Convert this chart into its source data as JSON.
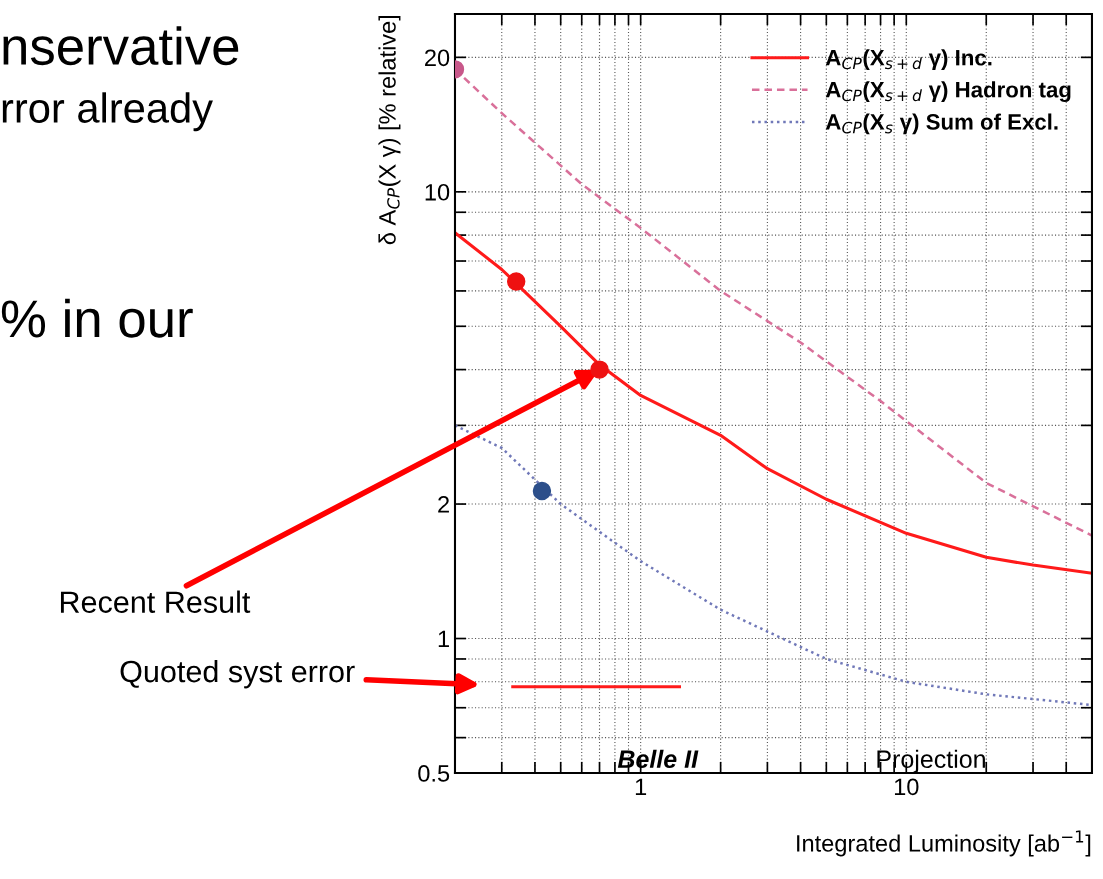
{
  "chart_data": {
    "type": "line",
    "xlabel": "Integrated Luminosity [ab$^{−1}$]",
    "ylabel": "δ A$_{CP}$(X γ) [% relative]",
    "log": "xy",
    "grid": true,
    "legend": "top right",
    "xlim": [
      0.2,
      50
    ],
    "xticks": [
      {
        "value": 0.2,
        "label": null
      },
      {
        "value": 0.3,
        "label": null
      },
      {
        "value": 0.4,
        "label": null
      },
      {
        "value": 0.5,
        "label": null
      },
      {
        "value": 0.6,
        "label": null
      },
      {
        "value": 0.7,
        "label": null
      },
      {
        "value": 0.8,
        "label": null
      },
      {
        "value": 0.9,
        "label": null
      },
      1,
      {
        "value": 2,
        "label": null
      },
      {
        "value": 3,
        "label": null
      },
      {
        "value": 4,
        "label": null
      },
      {
        "value": 5,
        "label": null
      },
      {
        "value": 6,
        "label": null
      },
      {
        "value": 7,
        "label": null
      },
      {
        "value": 8,
        "label": null
      },
      {
        "value": 9,
        "label": null
      },
      10,
      {
        "value": 20,
        "label": null
      },
      {
        "value": 30,
        "label": null
      },
      {
        "value": 40,
        "label": null
      }
    ],
    "ylim": [
      0.5,
      25
    ],
    "yticks": [
      0.5,
      {
        "value": 0.6,
        "label": null
      },
      {
        "value": 0.7,
        "label": null
      },
      {
        "value": 0.8,
        "label": null
      },
      {
        "value": 0.9,
        "label": null
      },
      1,
      2,
      {
        "value": 3,
        "label": null
      },
      {
        "value": 4,
        "label": null
      },
      {
        "value": 5,
        "label": null
      },
      {
        "value": 6,
        "label": null
      },
      {
        "value": 7,
        "label": null
      },
      {
        "value": 8,
        "label": null
      },
      {
        "value": 9,
        "label": null
      },
      10,
      20
    ],
    "series": [
      {
        "name": "A$_{CP}$(X$_{s+d}$ γ) Inc.",
        "line_style": "solid",
        "color": "#ff1a1a",
        "x": [
          0.2,
          0.3,
          0.5,
          0.7,
          1,
          2,
          3,
          5,
          10,
          20,
          30,
          50
        ],
        "values": [
          8.1,
          6.7,
          5.0,
          4.1,
          3.5,
          2.85,
          2.4,
          2.05,
          1.72,
          1.52,
          1.46,
          1.4
        ]
      },
      {
        "name": "A$_{CP}$(X$_{s+d}$ γ) Hadron tag",
        "line_style": "dashed",
        "color": "#d9709a",
        "x": [
          0.2,
          0.3,
          0.6,
          1,
          2,
          4,
          8,
          20,
          50
        ],
        "values": [
          18.8,
          15.0,
          10.4,
          8.3,
          6.0,
          4.6,
          3.4,
          2.23,
          1.7
        ]
      },
      {
        "name": "A$_{CP}$(X$_{s}$ γ) Sum of Excl.",
        "line_style": "dotted",
        "color": "#7078b8",
        "x": [
          0.2,
          0.3,
          0.5,
          1,
          2,
          5,
          10,
          20,
          50
        ],
        "values": [
          3.0,
          2.67,
          2.0,
          1.49,
          1.16,
          0.9,
          0.8,
          0.75,
          0.71
        ]
      },
      {
        "type": "scatter",
        "marker": "circle",
        "color": "#c8588a",
        "x": [
          0.2
        ],
        "values": [
          18.8
        ]
      },
      {
        "type": "scatter",
        "marker": "circle",
        "color": "#ee1111",
        "x": [
          0.34,
          0.7
        ],
        "values": [
          6.3,
          4.0
        ]
      },
      {
        "type": "scatter",
        "marker": "circle",
        "color": "#2c4f8a",
        "x": [
          0.425
        ],
        "values": [
          2.14
        ]
      },
      {
        "line_style": "solid",
        "color": "#ff1a1a",
        "x": [
          0.33,
          1.4
        ],
        "values": [
          0.78,
          0.78
        ]
      }
    ],
    "annotations": [
      {
        "text": "Recent Result",
        "x": 0.7,
        "y": 4.0
      },
      "Quoted syst error",
      "Belle II",
      "Projection",
      "nservative",
      "rror already",
      "% in our"
    ]
  }
}
